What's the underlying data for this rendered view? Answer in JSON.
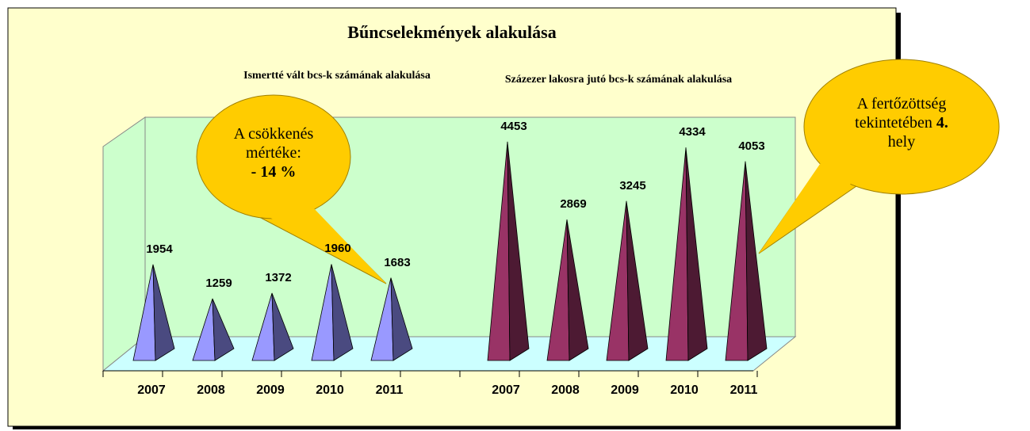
{
  "chart_data": {
    "type": "pyramid",
    "title": "Bűncselekmények alakulása",
    "ylim": [
      0,
      5000
    ],
    "series": [
      {
        "name": "Ismertté vált bcs-k számának alakulása",
        "color": "#9999ff",
        "side_color": "#4a4a80",
        "categories": [
          "2007",
          "2008",
          "2009",
          "2010",
          "2011"
        ],
        "values": [
          1954,
          1259,
          1372,
          1960,
          1683
        ]
      },
      {
        "name": "Százezer lakosra jutó bcs-k számának alakulása",
        "color": "#993366",
        "side_color": "#4d1a33",
        "categories": [
          "2007",
          "2008",
          "2009",
          "2010",
          "2011"
        ],
        "values": [
          4453,
          2869,
          3245,
          4334,
          4053
        ]
      }
    ],
    "annotations": [
      {
        "lines": [
          [
            {
              "text": "A csökkenés"
            }
          ],
          [
            {
              "text": "mértéke:"
            }
          ],
          [
            {
              "text": "- 14 %",
              "bold": true
            }
          ]
        ]
      },
      {
        "lines": [
          [
            {
              "text": "A fertőzöttség"
            }
          ],
          [
            {
              "text": "tekintetében "
            },
            {
              "text": "4.",
              "bold": true
            }
          ],
          [
            {
              "text": "hely"
            }
          ]
        ]
      }
    ]
  }
}
